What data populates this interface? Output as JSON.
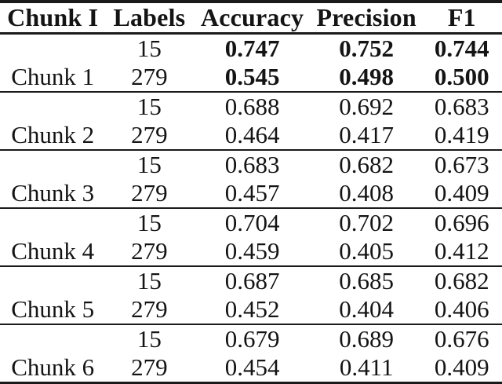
{
  "table": {
    "headers": [
      "Chunk I",
      "Labels",
      "Accuracy",
      "Precision",
      "F1"
    ],
    "groups": [
      {
        "chunk": "Chunk 1",
        "rows": [
          {
            "labels": "15",
            "accuracy": "0.747",
            "precision": "0.752",
            "f1": "0.744"
          },
          {
            "labels": "279",
            "accuracy": "0.545",
            "precision": "0.498",
            "f1": "0.500"
          }
        ]
      },
      {
        "chunk": "Chunk 2",
        "rows": [
          {
            "labels": "15",
            "accuracy": "0.688",
            "precision": "0.692",
            "f1": "0.683"
          },
          {
            "labels": "279",
            "accuracy": "0.464",
            "precision": "0.417",
            "f1": "0.419"
          }
        ]
      },
      {
        "chunk": "Chunk 3",
        "rows": [
          {
            "labels": "15",
            "accuracy": "0.683",
            "precision": "0.682",
            "f1": "0.673"
          },
          {
            "labels": "279",
            "accuracy": "0.457",
            "precision": "0.408",
            "f1": "0.409"
          }
        ]
      },
      {
        "chunk": "Chunk 4",
        "rows": [
          {
            "labels": "15",
            "accuracy": "0.704",
            "precision": "0.702",
            "f1": "0.696"
          },
          {
            "labels": "279",
            "accuracy": "0.459",
            "precision": "0.405",
            "f1": "0.412"
          }
        ]
      },
      {
        "chunk": "Chunk 5",
        "rows": [
          {
            "labels": "15",
            "accuracy": "0.687",
            "precision": "0.685",
            "f1": "0.682"
          },
          {
            "labels": "279",
            "accuracy": "0.452",
            "precision": "0.404",
            "f1": "0.406"
          }
        ]
      },
      {
        "chunk": "Chunk 6",
        "rows": [
          {
            "labels": "15",
            "accuracy": "0.679",
            "precision": "0.689",
            "f1": "0.676"
          },
          {
            "labels": "279",
            "accuracy": "0.454",
            "precision": "0.411",
            "f1": "0.409"
          }
        ]
      }
    ]
  },
  "colors": {
    "text": "#141414",
    "rule": "#1a1a1a",
    "background": "#ffffff"
  }
}
